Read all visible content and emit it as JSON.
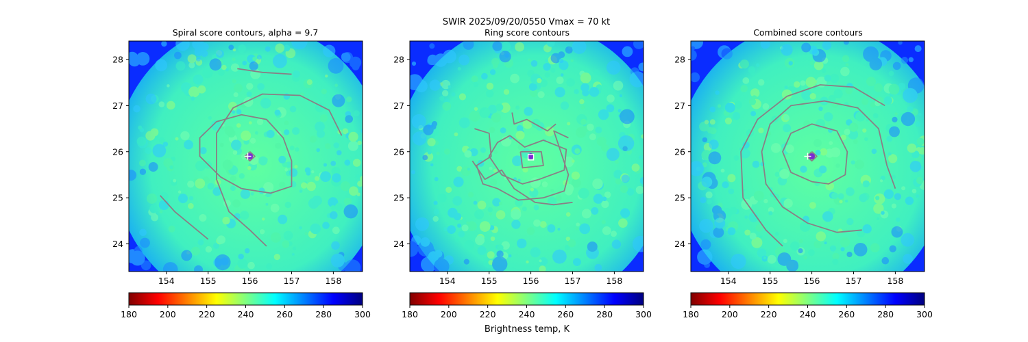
{
  "suptitle": {
    "line1": "SWIR  2025/09/20/0550    Vmax = 70 kt"
  },
  "colorbar": {
    "xlabel": "Brightness temp, K",
    "range": [
      180,
      300
    ],
    "ticks": [
      "180",
      "200",
      "220",
      "240",
      "260",
      "280",
      "300"
    ],
    "colormap": "jet_r",
    "stops": [
      "#800000",
      "#ff0000",
      "#ff8000",
      "#ffff00",
      "#80ff80",
      "#00ffff",
      "#0080ff",
      "#0000ff",
      "#000080"
    ]
  },
  "map": {
    "xlim": [
      153.1,
      158.7
    ],
    "ylim": [
      23.4,
      28.4
    ],
    "x_ticks": [
      "154",
      "155",
      "156",
      "157",
      "158"
    ],
    "y_ticks": [
      "24",
      "25",
      "26",
      "27",
      "28"
    ],
    "center": {
      "lon": 156.0,
      "lat": 25.9
    },
    "background_temp_k": 250,
    "colors": {
      "contour": "#8a7f86",
      "eye_fill": "#7b2ad1",
      "marker": "#ffffff"
    }
  },
  "chart_data": [
    {
      "type": "contour",
      "title": "Spiral score contours, alpha =  9.7",
      "colorbar_ticks": [
        "180",
        "200",
        "220",
        "240",
        "260",
        "280",
        "300"
      ],
      "contours": [
        [
          [
            155.7,
            27.8
          ],
          [
            156.3,
            27.72
          ],
          [
            157.0,
            27.68
          ]
        ],
        [
          [
            158.2,
            26.35
          ],
          [
            157.9,
            26.9
          ],
          [
            157.2,
            27.22
          ],
          [
            156.3,
            27.25
          ],
          [
            155.6,
            26.95
          ],
          [
            155.2,
            26.4
          ],
          [
            155.2,
            25.4
          ],
          [
            155.5,
            24.7
          ],
          [
            156.0,
            24.3
          ],
          [
            156.4,
            23.95
          ]
        ],
        [
          [
            155.8,
            25.2
          ],
          [
            155.3,
            25.45
          ],
          [
            154.8,
            25.9
          ],
          [
            154.8,
            26.3
          ],
          [
            155.2,
            26.65
          ],
          [
            155.8,
            26.8
          ],
          [
            156.4,
            26.7
          ],
          [
            156.8,
            26.3
          ],
          [
            157.0,
            25.8
          ],
          [
            157.0,
            25.25
          ],
          [
            156.5,
            25.1
          ],
          [
            155.8,
            25.2
          ]
        ],
        [
          [
            153.85,
            25.05
          ],
          [
            154.2,
            24.7
          ],
          [
            154.6,
            24.4
          ],
          [
            155.0,
            24.1
          ]
        ],
        [
          [
            156.0,
            26.0
          ],
          [
            156.12,
            25.9
          ],
          [
            156.0,
            25.8
          ],
          [
            155.88,
            25.9
          ],
          [
            156.0,
            26.0
          ]
        ]
      ],
      "eye": {
        "lon": 156.0,
        "lat": 25.9
      },
      "marker": {
        "lon": 155.95,
        "lat": 25.9,
        "symbol": "+"
      }
    },
    {
      "type": "contour",
      "title": "Ring score contours",
      "colorbar_ticks": [
        "180",
        "200",
        "220",
        "240",
        "260",
        "280",
        "300"
      ],
      "contours": [
        [
          [
            155.5,
            26.35
          ],
          [
            155.85,
            26.1
          ],
          [
            156.3,
            26.25
          ],
          [
            156.85,
            26.05
          ],
          [
            156.8,
            25.6
          ],
          [
            156.2,
            25.4
          ],
          [
            155.8,
            25.3
          ],
          [
            155.3,
            25.5
          ],
          [
            155.0,
            25.9
          ],
          [
            155.2,
            26.2
          ],
          [
            155.5,
            26.35
          ]
        ],
        [
          [
            154.65,
            26.5
          ],
          [
            155.0,
            26.4
          ],
          [
            155.05,
            25.9
          ],
          [
            154.7,
            25.7
          ],
          [
            154.85,
            25.3
          ],
          [
            155.2,
            25.2
          ],
          [
            155.7,
            24.95
          ],
          [
            156.3,
            25.0
          ],
          [
            156.8,
            25.15
          ],
          [
            156.9,
            25.5
          ],
          [
            156.55,
            26.45
          ],
          [
            156.9,
            26.3
          ]
        ],
        [
          [
            154.6,
            25.8
          ],
          [
            154.9,
            25.4
          ],
          [
            155.3,
            25.6
          ],
          [
            155.6,
            25.2
          ],
          [
            156.1,
            24.9
          ],
          [
            156.55,
            24.85
          ],
          [
            157.0,
            24.9
          ]
        ],
        [
          [
            155.55,
            26.85
          ],
          [
            155.6,
            26.6
          ],
          [
            155.9,
            26.7
          ],
          [
            156.4,
            26.45
          ],
          [
            156.6,
            26.6
          ]
        ],
        [
          [
            155.75,
            26.0
          ],
          [
            156.25,
            26.0
          ],
          [
            156.3,
            25.7
          ],
          [
            155.8,
            25.65
          ],
          [
            155.75,
            26.0
          ]
        ]
      ],
      "eye": {
        "lon": 156.0,
        "lat": 25.9
      },
      "marker": {
        "lon": 156.0,
        "lat": 25.88,
        "symbol": "square"
      }
    },
    {
      "type": "contour",
      "title": "Combined score contours",
      "colorbar_ticks": [
        "180",
        "200",
        "220",
        "240",
        "260",
        "280",
        "300"
      ],
      "contours": [
        [
          [
            157.75,
            27.0
          ],
          [
            157.0,
            27.4
          ],
          [
            156.2,
            27.45
          ],
          [
            155.4,
            27.2
          ],
          [
            154.7,
            26.7
          ],
          [
            154.3,
            26.0
          ],
          [
            154.35,
            25.0
          ],
          [
            154.9,
            24.3
          ],
          [
            155.3,
            23.95
          ]
        ],
        [
          [
            158.0,
            25.2
          ],
          [
            157.8,
            25.7
          ],
          [
            157.6,
            26.5
          ],
          [
            157.1,
            26.95
          ],
          [
            156.3,
            27.1
          ],
          [
            155.5,
            27.0
          ],
          [
            155.0,
            26.6
          ],
          [
            154.8,
            26.0
          ],
          [
            154.9,
            25.3
          ],
          [
            155.3,
            24.8
          ],
          [
            155.9,
            24.45
          ],
          [
            156.6,
            24.25
          ],
          [
            157.2,
            24.3
          ]
        ],
        [
          [
            156.0,
            25.35
          ],
          [
            155.5,
            25.55
          ],
          [
            155.3,
            26.0
          ],
          [
            155.5,
            26.4
          ],
          [
            156.0,
            26.6
          ],
          [
            156.6,
            26.45
          ],
          [
            156.85,
            26.0
          ],
          [
            156.8,
            25.5
          ],
          [
            156.4,
            25.3
          ],
          [
            156.0,
            25.35
          ]
        ],
        [
          [
            156.0,
            26.0
          ],
          [
            156.12,
            25.9
          ],
          [
            156.0,
            25.8
          ],
          [
            155.88,
            25.9
          ],
          [
            156.0,
            26.0
          ]
        ]
      ],
      "eye": {
        "lon": 156.0,
        "lat": 25.9
      },
      "marker": {
        "lon": 155.9,
        "lat": 25.9,
        "symbol": "+"
      }
    }
  ]
}
